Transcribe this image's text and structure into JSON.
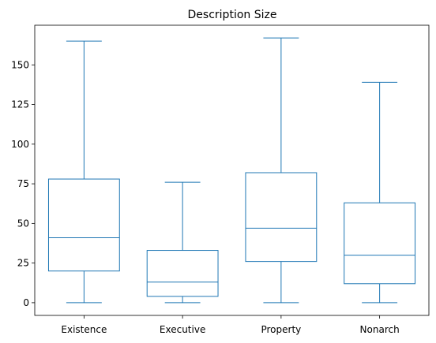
{
  "chart_data": {
    "type": "box",
    "title": "Description Size",
    "xlabel": "",
    "ylabel": "",
    "ylim": [
      -8,
      175
    ],
    "yticks": [
      0,
      25,
      50,
      75,
      100,
      125,
      150
    ],
    "grid": false,
    "color": "#1f77b4",
    "categories": [
      "Existence",
      "Executive",
      "Property",
      "Nonarch"
    ],
    "boxes": [
      {
        "label": "Existence",
        "whisker_low": 0,
        "q1": 20,
        "median": 41,
        "q3": 78,
        "whisker_high": 165
      },
      {
        "label": "Executive",
        "whisker_low": 0,
        "q1": 4,
        "median": 13,
        "q3": 33,
        "whisker_high": 76
      },
      {
        "label": "Property",
        "whisker_low": 0,
        "q1": 26,
        "median": 47,
        "q3": 82,
        "whisker_high": 167
      },
      {
        "label": "Nonarch",
        "whisker_low": 0,
        "q1": 12,
        "median": 30,
        "q3": 63,
        "whisker_high": 139
      }
    ]
  }
}
